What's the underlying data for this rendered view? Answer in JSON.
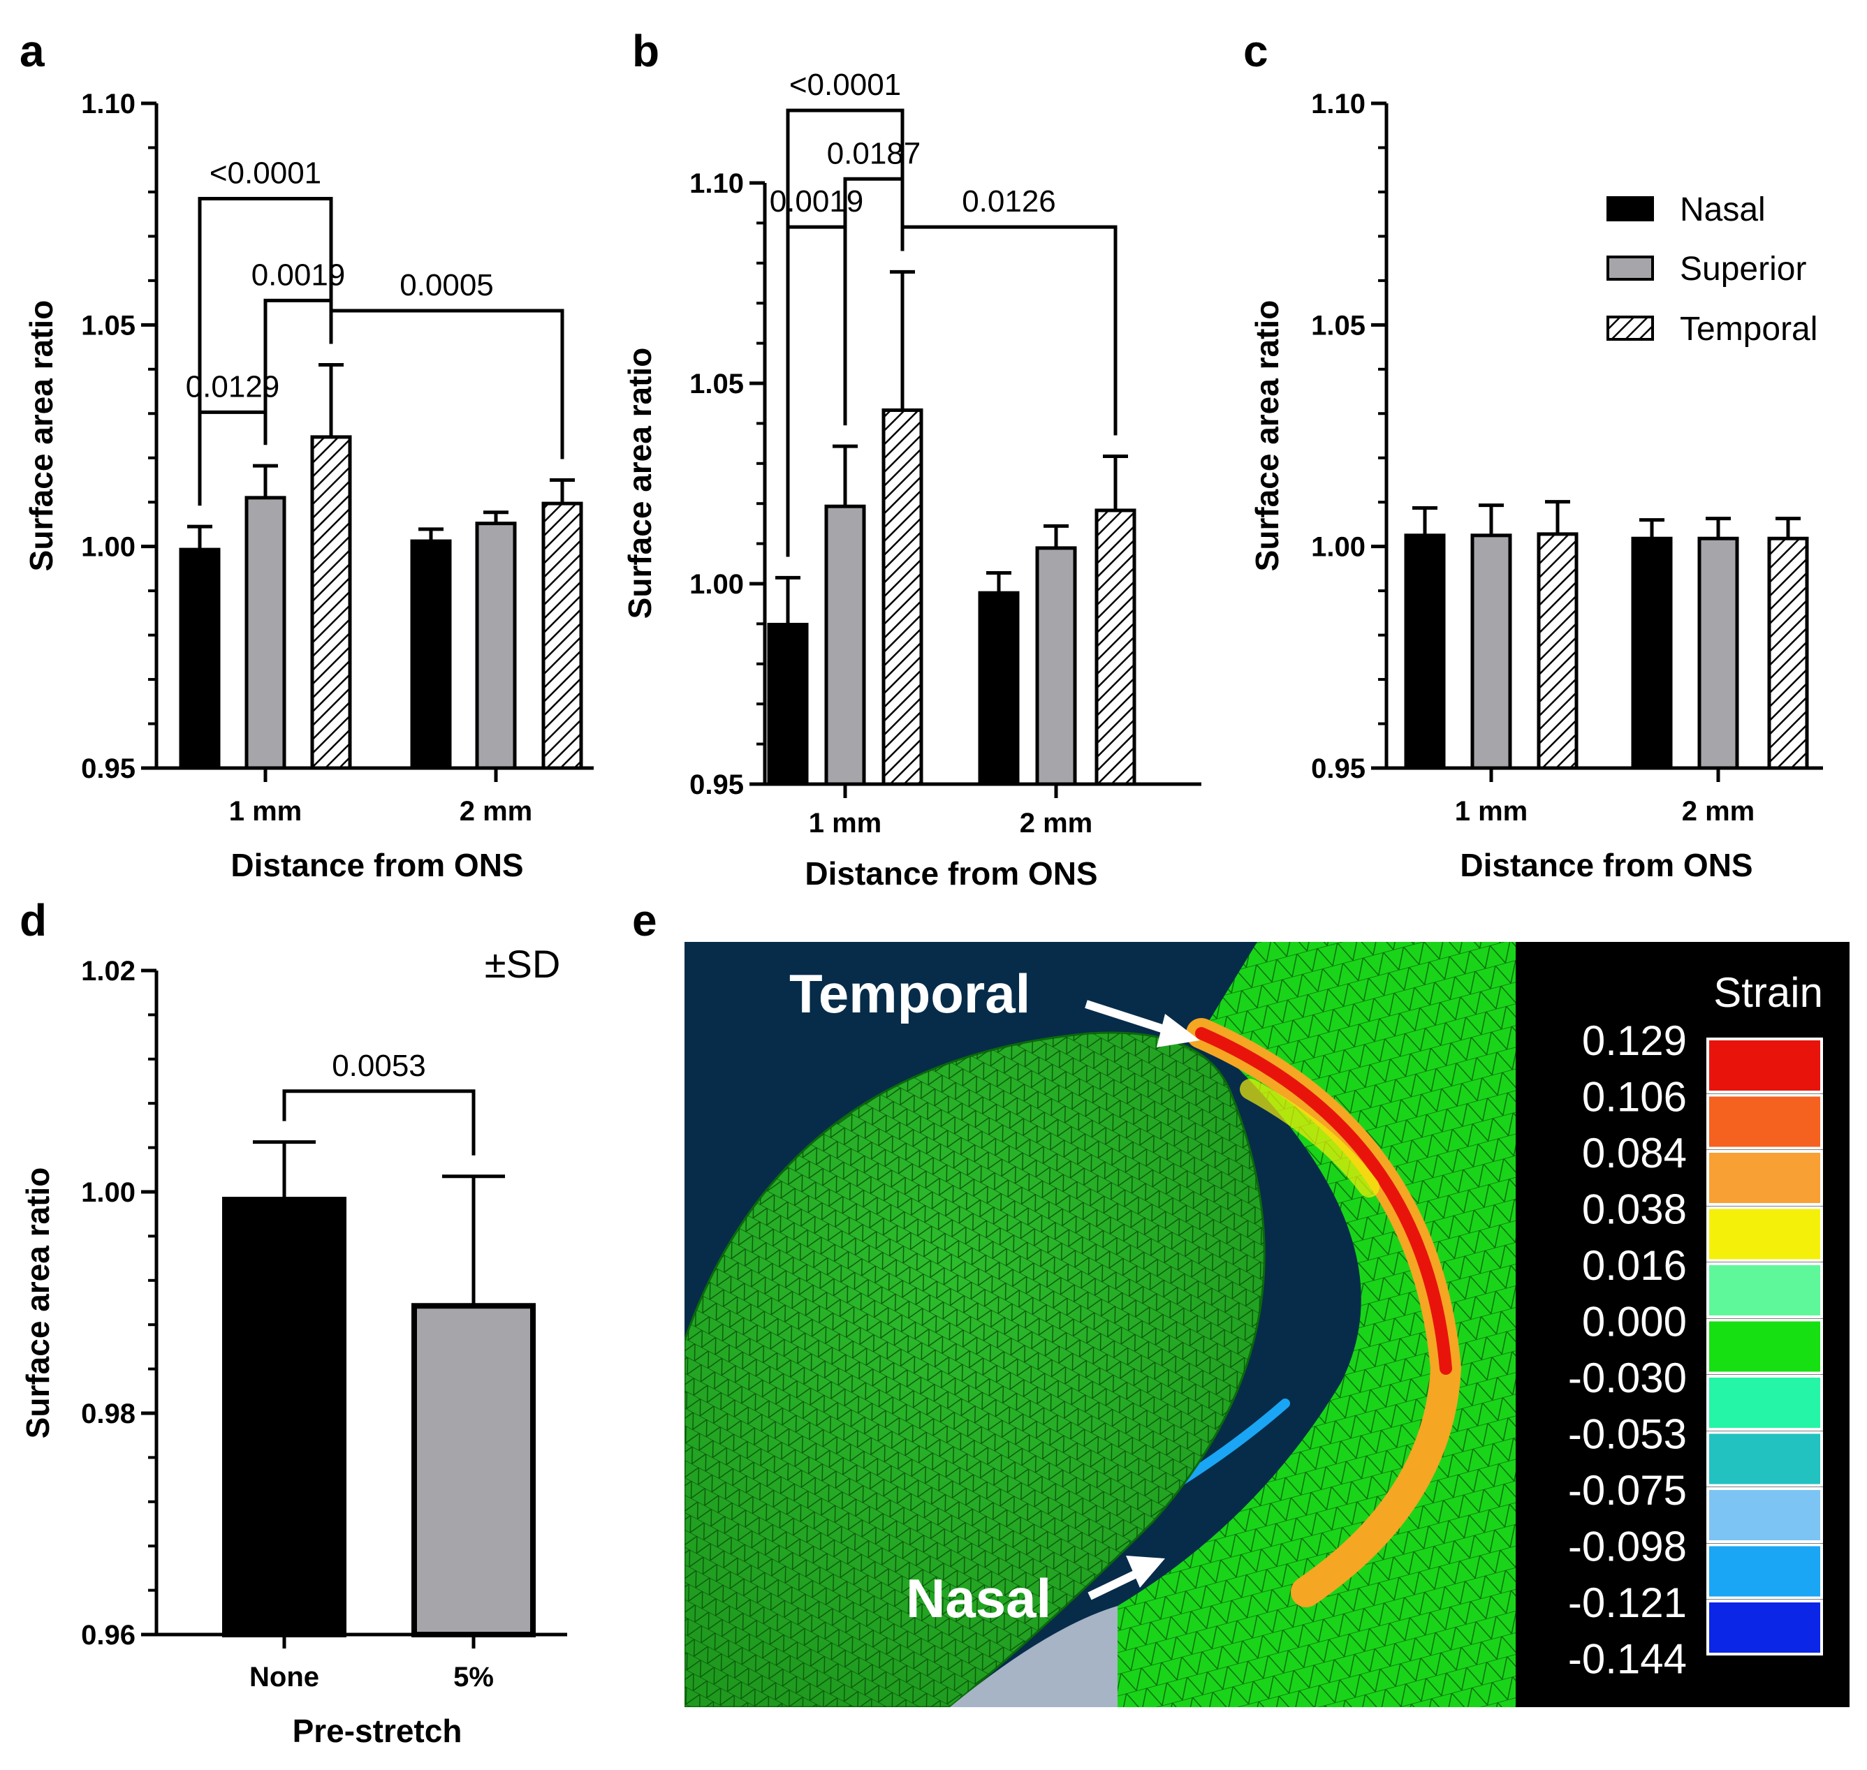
{
  "figure": {
    "panel_labels": [
      "a",
      "b",
      "c",
      "d",
      "e"
    ],
    "series_names": [
      "Nasal",
      "Superior",
      "Temporal"
    ],
    "colors": {
      "nasal": "#000000",
      "superior": "#a6a6aa",
      "temporal_hatch": "#000000",
      "panel_e_bg": "#000000"
    }
  },
  "chart_data": [
    {
      "panel": "a",
      "type": "bar",
      "categories": [
        "1 mm",
        "2 mm"
      ],
      "series": [
        {
          "name": "Nasal",
          "values": [
            0.9993,
            1.0012
          ],
          "sd": [
            0.0052,
            0.0027
          ]
        },
        {
          "name": "Superior",
          "values": [
            1.011,
            1.0052
          ],
          "sd": [
            0.0072,
            0.0025
          ]
        },
        {
          "name": "Temporal",
          "values": [
            1.0247,
            1.0097
          ],
          "sd": [
            0.0163,
            0.0053
          ]
        }
      ],
      "xlabel": "Distance from ONS",
      "ylabel": "Surface area ratio",
      "ylim": [
        0.95,
        1.1
      ],
      "yticks": [
        "0.95",
        "1.00",
        "1.05",
        "1.10"
      ],
      "comparisons": [
        {
          "label": "<0.0001",
          "from": "1 mm Nasal",
          "to": "1 mm Temporal",
          "bracket_y": 1.0785
        },
        {
          "label": "0.0019",
          "from": "1 mm Superior",
          "to": "1 mm Temporal",
          "bracket_y": 1.0555
        },
        {
          "label": "0.0005",
          "from": "1 mm Temporal",
          "to": "2 mm Temporal",
          "bracket_y": 1.0532
        },
        {
          "label": "0.0129",
          "from": "1 mm Nasal",
          "to": "1 mm Superior",
          "bracket_y": 1.0303
        }
      ]
    },
    {
      "panel": "b",
      "type": "bar",
      "categories": [
        "1 mm",
        "2 mm"
      ],
      "series": [
        {
          "name": "Nasal",
          "values": [
            0.9898,
            0.9977
          ],
          "sd": [
            0.0117,
            0.005
          ]
        },
        {
          "name": "Superior",
          "values": [
            1.0193,
            1.0089
          ],
          "sd": [
            0.015,
            0.0055
          ]
        },
        {
          "name": "Temporal",
          "values": [
            1.0433,
            1.0183
          ],
          "sd": [
            0.0345,
            0.0135
          ]
        }
      ],
      "xlabel": "Distance from ONS",
      "ylabel": "Surface area ratio",
      "ylim": [
        0.95,
        1.1
      ],
      "yticks": [
        "0.95",
        "1.00",
        "1.05",
        "1.10"
      ],
      "comparisons": [
        {
          "label": "<0.0001",
          "from": "1 mm Nasal",
          "to": "1 mm Temporal",
          "bracket_y": 1.1181
        },
        {
          "label": "0.0187",
          "from": "1 mm Superior",
          "to": "1 mm Temporal",
          "bracket_y": 1.101
        },
        {
          "label": "0.0019",
          "from": "1 mm Nasal",
          "to": "1 mm Superior",
          "bracket_y": 1.089
        },
        {
          "label": "0.0126",
          "from": "1 mm Temporal",
          "to": "2 mm Temporal",
          "bracket_y": 1.089
        }
      ]
    },
    {
      "panel": "c",
      "type": "bar",
      "categories": [
        "1 mm",
        "2 mm"
      ],
      "series": [
        {
          "name": "Nasal",
          "values": [
            1.0025,
            1.0018
          ],
          "sd": [
            0.0062,
            0.0042
          ]
        },
        {
          "name": "Superior",
          "values": [
            1.0025,
            1.0018
          ],
          "sd": [
            0.0068,
            0.0045
          ]
        },
        {
          "name": "Temporal",
          "values": [
            1.0028,
            1.0018
          ],
          "sd": [
            0.0073,
            0.0045
          ]
        }
      ],
      "xlabel": "Distance from ONS",
      "ylabel": "Surface area ratio",
      "ylim": [
        0.95,
        1.1
      ],
      "yticks": [
        "0.95",
        "1.00",
        "1.05",
        "1.10"
      ],
      "legend": {
        "position": "top-right",
        "entries": [
          "Nasal",
          "Superior",
          "Temporal"
        ]
      },
      "comparisons": []
    },
    {
      "panel": "d",
      "type": "bar",
      "categories": [
        "None",
        "5%"
      ],
      "values": [
        0.9993,
        0.9897
      ],
      "sd": [
        0.0052,
        0.0117
      ],
      "xlabel": "Pre-stretch",
      "ylabel": "Surface area ratio",
      "ylim": [
        0.96,
        1.02
      ],
      "yticks": [
        "0.96",
        "0.98",
        "1.00",
        "1.02"
      ],
      "annotation": "±SD",
      "comparisons": [
        {
          "label": "0.0053",
          "from": "None",
          "to": "5%",
          "bracket_y": 1.0091
        }
      ]
    }
  ],
  "panel_e": {
    "labels": {
      "temporal": "Temporal",
      "nasal": "Nasal"
    },
    "legend_title": "Strain",
    "strain_scale": [
      {
        "value": "0.129",
        "color": "#e8140c"
      },
      {
        "value": "0.106",
        "color": "#f5611f"
      },
      {
        "value": "0.084",
        "color": "#f8a033"
      },
      {
        "value": "0.038",
        "color": "#f4f00a"
      },
      {
        "value": "0.016",
        "color": "#5ef89a"
      },
      {
        "value": "0.000",
        "color": "#16e012"
      },
      {
        "value": "-0.030",
        "color": "#25f5a6"
      },
      {
        "value": "-0.053",
        "color": "#22c2c0"
      },
      {
        "value": "-0.075",
        "color": "#7cc4f4"
      },
      {
        "value": "-0.098",
        "color": "#1aa6f4"
      },
      {
        "value": "-0.121",
        "color": "#0b26e6"
      },
      {
        "value": "-0.144",
        "color": ""
      }
    ]
  }
}
